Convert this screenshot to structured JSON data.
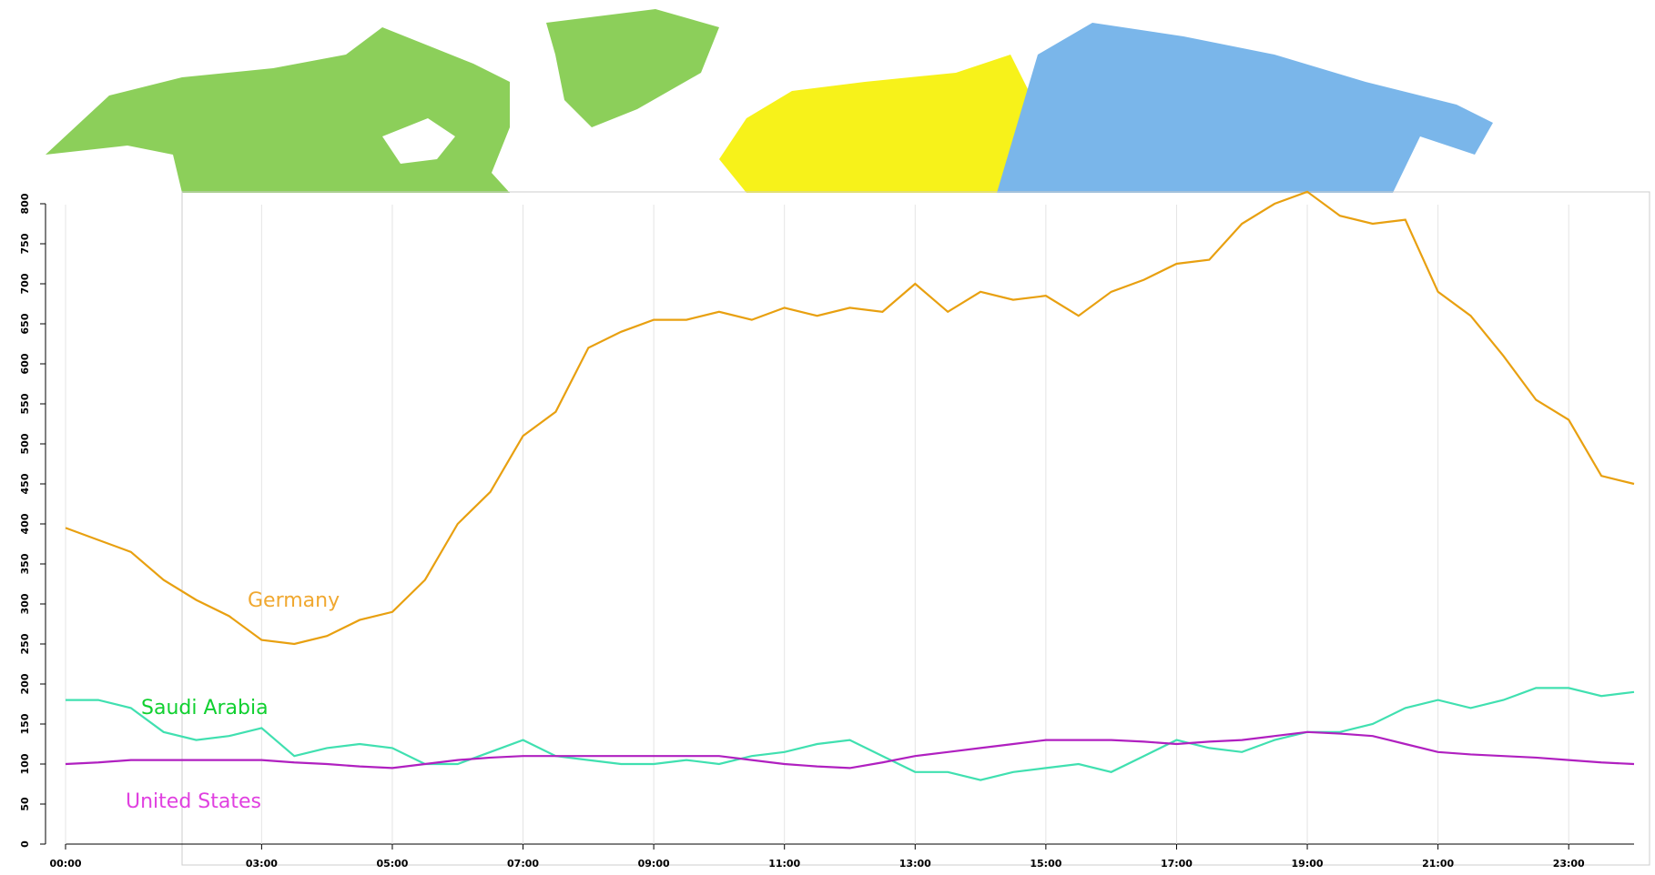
{
  "chart_data": {
    "type": "line",
    "x": [
      0,
      0.5,
      1,
      1.5,
      2,
      2.5,
      3,
      3.5,
      4,
      4.5,
      5,
      5.5,
      6,
      6.5,
      7,
      7.5,
      8,
      8.5,
      9,
      9.5,
      10,
      10.5,
      11,
      11.5,
      12,
      12.5,
      13,
      13.5,
      14,
      14.5,
      15,
      15.5,
      16,
      16.5,
      17,
      17.5,
      18,
      18.5,
      19,
      19.5,
      20,
      20.5,
      21,
      21.5,
      22,
      22.5,
      23,
      23.5,
      24
    ],
    "series": [
      {
        "name": "Germany",
        "color": "#e8a010",
        "label_color": "#f0a830",
        "values": [
          395,
          380,
          365,
          330,
          305,
          285,
          255,
          250,
          260,
          280,
          290,
          330,
          400,
          440,
          510,
          540,
          620,
          640,
          655,
          655,
          665,
          655,
          670,
          660,
          670,
          665,
          700,
          665,
          690,
          680,
          685,
          660,
          690,
          705,
          725,
          730,
          775,
          800,
          815,
          785,
          775,
          780,
          690,
          660,
          610,
          555,
          530,
          460,
          450
        ]
      },
      {
        "name": "Saudi Arabia",
        "color": "#40e0b0",
        "label_color": "#10d030",
        "values": [
          180,
          180,
          170,
          140,
          130,
          135,
          145,
          110,
          120,
          125,
          120,
          100,
          100,
          115,
          130,
          110,
          105,
          100,
          100,
          105,
          100,
          110,
          115,
          125,
          130,
          110,
          90,
          90,
          80,
          90,
          95,
          100,
          90,
          110,
          130,
          120,
          115,
          130,
          140,
          140,
          150,
          170,
          180,
          170,
          180,
          195,
          195,
          185,
          190
        ]
      },
      {
        "name": "United States",
        "color": "#b020c0",
        "label_color": "#e040e0",
        "values": [
          100,
          102,
          105,
          105,
          105,
          105,
          105,
          102,
          100,
          97,
          95,
          100,
          105,
          108,
          110,
          110,
          110,
          110,
          110,
          110,
          110,
          105,
          100,
          97,
          95,
          102,
          110,
          115,
          120,
          125,
          130,
          130,
          130,
          128,
          125,
          128,
          130,
          135,
          140,
          138,
          135,
          125,
          115,
          112,
          110,
          108,
          105,
          102,
          100
        ]
      }
    ],
    "xlim": [
      0,
      24
    ],
    "xticks": [
      {
        "value": 0,
        "label": "00:00"
      },
      {
        "value": 3,
        "label": "03:00"
      },
      {
        "value": 5,
        "label": "05:00"
      },
      {
        "value": 7,
        "label": "07:00"
      },
      {
        "value": 9,
        "label": "09:00"
      },
      {
        "value": 11,
        "label": "11:00"
      },
      {
        "value": 13,
        "label": "13:00"
      },
      {
        "value": 15,
        "label": "15:00"
      },
      {
        "value": 17,
        "label": "17:00"
      },
      {
        "value": 19,
        "label": "19:00"
      },
      {
        "value": 21,
        "label": "21:00"
      },
      {
        "value": 23,
        "label": "23:00"
      }
    ],
    "ylim": [
      0,
      800
    ],
    "yticks": [
      0,
      50,
      100,
      150,
      200,
      250,
      300,
      350,
      400,
      450,
      500,
      550,
      600,
      650,
      700,
      750,
      800
    ],
    "grid": true
  }
}
